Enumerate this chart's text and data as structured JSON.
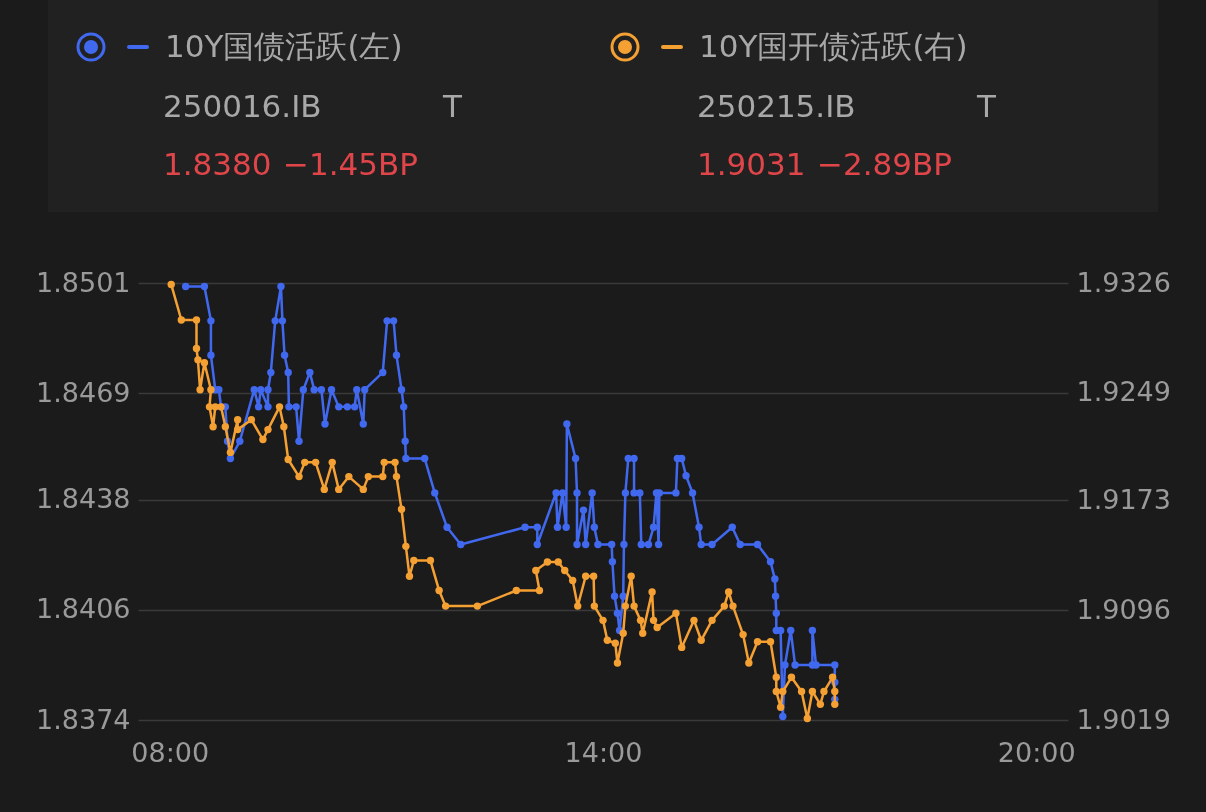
{
  "chart_data": {
    "type": "line",
    "marker": "circle",
    "grid": "y",
    "legend": "top",
    "annotations": [
      "250016.IB",
      "T",
      "1.8380",
      "−1.45BP",
      "250215.IB",
      "T",
      "1.9031",
      "−2.89BP"
    ],
    "xlim": [
      7.56,
      20.44
    ],
    "xticks": [
      {
        "value": 8,
        "label": "08:00"
      },
      {
        "value": 14,
        "label": "14:00"
      },
      {
        "value": 20,
        "label": "20:00"
      }
    ],
    "ylim": [
      1.8374,
      1.8501
    ],
    "yticks": [
      1.8374,
      1.8406,
      1.8438,
      1.8469,
      1.8501
    ],
    "y2lim": [
      1.9019,
      1.9326
    ],
    "y2ticks": [
      1.9019,
      1.9096,
      1.9173,
      1.9249,
      1.9326
    ],
    "series": [
      {
        "name": "10Y国债活跃(左)",
        "color": "#4169f0",
        "x": [
          8.22,
          8.48,
          8.57,
          8.57,
          8.63,
          8.68,
          8.71,
          8.77,
          8.8,
          8.84,
          8.97,
          9.17,
          9.23,
          9.26,
          9.36,
          9.36,
          9.4,
          9.46,
          9.54,
          9.56,
          9.59,
          9.64,
          9.65,
          9.75,
          9.79,
          9.85,
          9.94,
          10,
          10.1,
          10.15,
          10.24,
          10.34,
          10.46,
          10.56,
          10.59,
          10.68,
          10.7,
          10.95,
          11.01,
          11.1,
          11.14,
          11.21,
          11.24,
          11.26,
          11.27,
          11.53,
          11.67,
          11.84,
          12.03,
          12.92,
          13.09,
          13.09,
          13.35,
          13.37,
          13.44,
          13.49,
          13.5,
          13.62,
          13.64,
          13.64,
          13.73,
          13.76,
          13.85,
          13.88,
          13.93,
          14.12,
          14.13,
          14.16,
          14.2,
          14.23,
          14.28,
          14.29,
          14.31,
          14.35,
          14.43,
          14.43,
          14.51,
          14.53,
          14.63,
          14.7,
          14.74,
          14.77,
          14.78,
          15.01,
          15.03,
          15.09,
          15.15,
          15.24,
          15.33,
          15.36,
          15.51,
          15.79,
          15.9,
          16.14,
          16.32,
          16.38,
          16.39,
          16.4,
          16.4,
          16.46,
          16.49,
          16.52,
          16.6,
          16.66,
          16.9,
          16.9,
          16.95,
          17.21,
          17.21,
          17.21
        ],
        "values": [
          1.85,
          1.85,
          1.849,
          1.848,
          1.847,
          1.847,
          1.8465,
          1.8465,
          1.8455,
          1.845,
          1.8455,
          1.847,
          1.8465,
          1.847,
          1.8465,
          1.847,
          1.8475,
          1.849,
          1.85,
          1.849,
          1.848,
          1.8475,
          1.8465,
          1.8465,
          1.8455,
          1.847,
          1.8475,
          1.847,
          1.847,
          1.846,
          1.847,
          1.8465,
          1.8465,
          1.8465,
          1.847,
          1.846,
          1.847,
          1.8475,
          1.849,
          1.849,
          1.848,
          1.847,
          1.8465,
          1.8455,
          1.845,
          1.845,
          1.844,
          1.843,
          1.8425,
          1.843,
          1.843,
          1.8425,
          1.844,
          1.843,
          1.844,
          1.843,
          1.846,
          1.845,
          1.844,
          1.8425,
          1.8435,
          1.8425,
          1.844,
          1.843,
          1.8425,
          1.8425,
          1.842,
          1.841,
          1.8405,
          1.84,
          1.841,
          1.8425,
          1.844,
          1.845,
          1.845,
          1.844,
          1.844,
          1.8425,
          1.8425,
          1.843,
          1.844,
          1.8425,
          1.844,
          1.844,
          1.845,
          1.845,
          1.8445,
          1.844,
          1.843,
          1.8425,
          1.8425,
          1.843,
          1.8425,
          1.8425,
          1.842,
          1.8415,
          1.841,
          1.8405,
          1.84,
          1.84,
          1.8375,
          1.839,
          1.84,
          1.839,
          1.839,
          1.84,
          1.839,
          1.839,
          1.8385,
          1.838
        ]
      },
      {
        "name": "10Y国开债活跃(右)",
        "color": "#f5a033",
        "axis": "y2",
        "x": [
          8.02,
          8.16,
          8.37,
          8.37,
          8.39,
          8.42,
          8.48,
          8.57,
          8.55,
          8.6,
          8.63,
          8.71,
          8.77,
          8.84,
          8.94,
          8.94,
          9.13,
          9.29,
          9.36,
          9.52,
          9.58,
          9.64,
          9.79,
          9.87,
          10.02,
          10.14,
          10.25,
          10.34,
          10.48,
          10.68,
          10.75,
          10.95,
          10.97,
          11.12,
          11.14,
          11.21,
          11.27,
          11.32,
          11.38,
          11.61,
          11.73,
          11.82,
          12.26,
          12.8,
          13.12,
          13.07,
          13.23,
          13.38,
          13.47,
          13.58,
          13.65,
          13.76,
          13.87,
          13.88,
          14,
          14.06,
          14.17,
          14.2,
          14.28,
          14.31,
          14.39,
          14.43,
          14.52,
          14.55,
          14.68,
          14.7,
          14.75,
          15.01,
          15.09,
          15.26,
          15.36,
          15.51,
          15.68,
          15.74,
          15.8,
          15.94,
          16.02,
          16.14,
          16.32,
          16.4,
          16.4,
          16.46,
          16.49,
          16.61,
          16.75,
          16.83,
          16.9,
          17.01,
          17.06,
          17.18,
          17.21,
          17.21
        ],
        "values": [
          1.9325,
          1.93,
          1.93,
          1.928,
          1.9272,
          1.9251,
          1.927,
          1.9251,
          1.9239,
          1.9225,
          1.9239,
          1.9239,
          1.9225,
          1.9207,
          1.923,
          1.9223,
          1.923,
          1.9216,
          1.9223,
          1.9239,
          1.9225,
          1.9202,
          1.919,
          1.92,
          1.92,
          1.9181,
          1.92,
          1.9181,
          1.919,
          1.9181,
          1.919,
          1.919,
          1.92,
          1.92,
          1.919,
          1.9167,
          1.9141,
          1.912,
          1.9131,
          1.9131,
          1.911,
          1.9099,
          1.9099,
          1.911,
          1.911,
          1.9124,
          1.913,
          1.913,
          1.9124,
          1.9117,
          1.9099,
          1.912,
          1.912,
          1.9099,
          1.9089,
          1.9075,
          1.9073,
          1.9059,
          1.908,
          1.9099,
          1.912,
          1.9099,
          1.9089,
          1.908,
          1.9109,
          1.9089,
          1.9084,
          1.9094,
          1.907,
          1.9089,
          1.9075,
          1.9089,
          1.9099,
          1.9109,
          1.9099,
          1.9079,
          1.9059,
          1.9074,
          1.9074,
          1.9049,
          1.9039,
          1.9028,
          1.9039,
          1.9049,
          1.9039,
          1.902,
          1.9039,
          1.903,
          1.9039,
          1.9049,
          1.9039,
          1.903
        ]
      }
    ]
  }
}
